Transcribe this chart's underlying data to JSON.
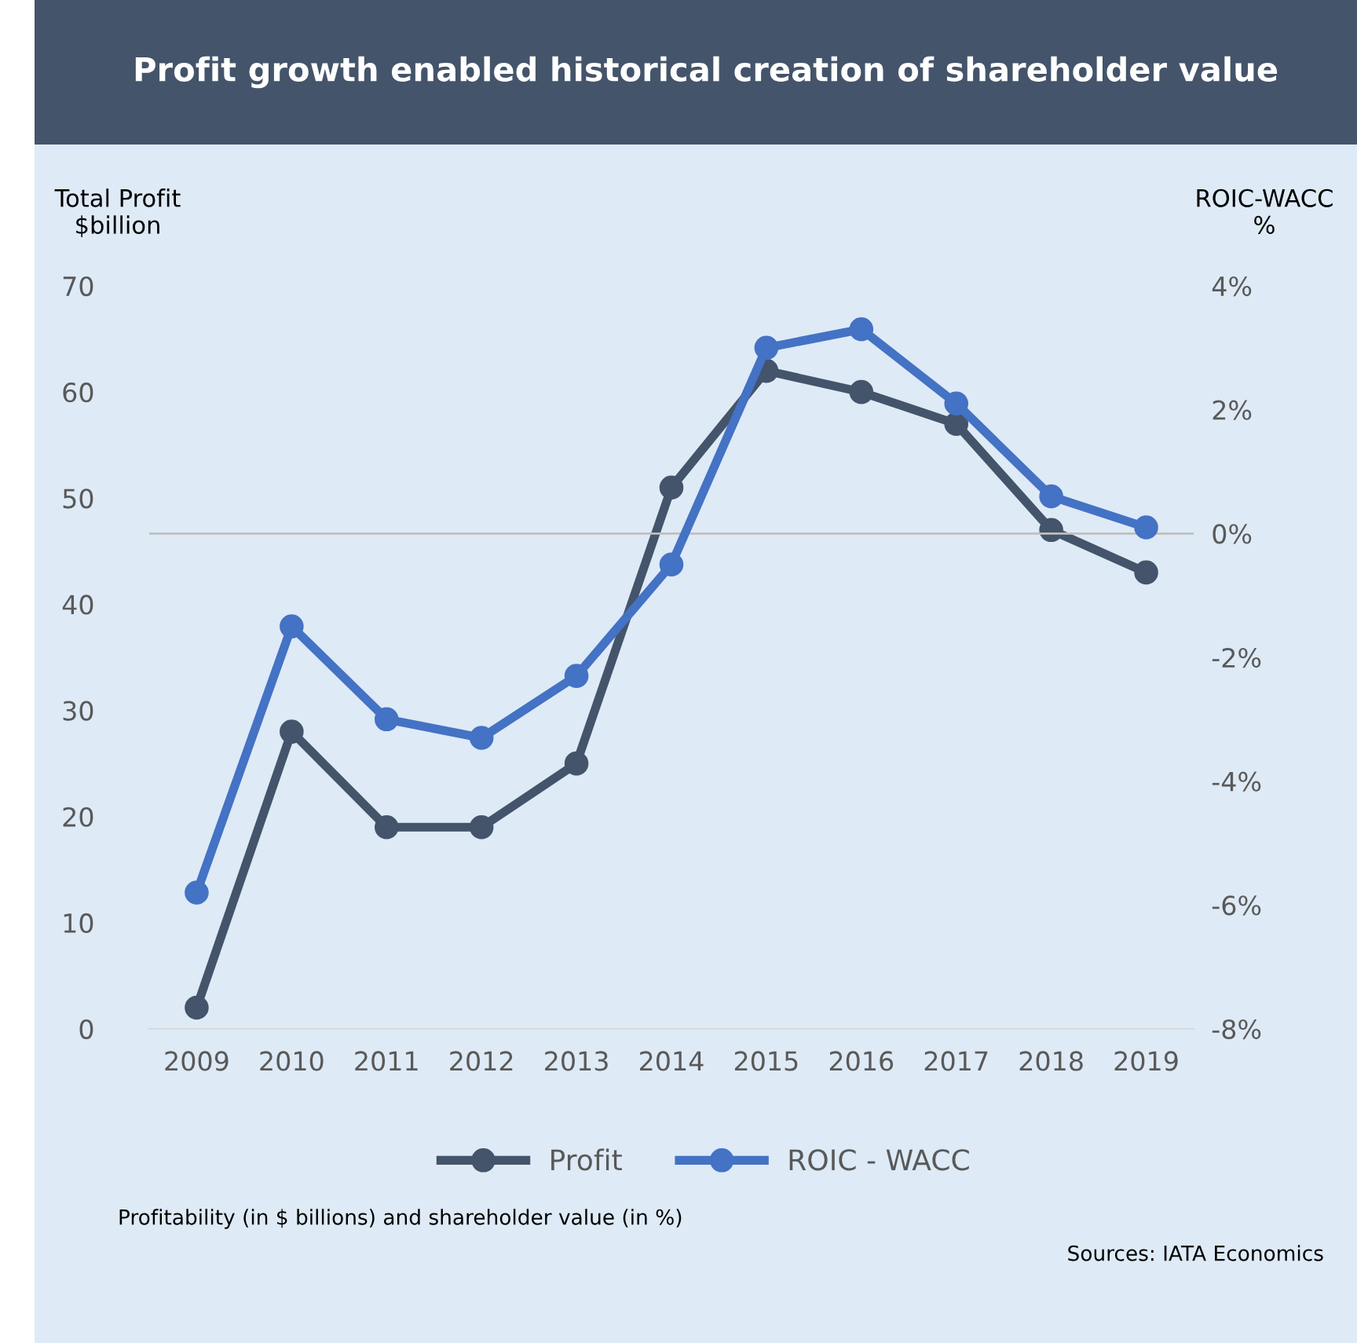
{
  "chart_data": {
    "type": "line",
    "title": "Profit growth enabled historical creation of shareholder value",
    "ylabel": "Total Profit\n$billion",
    "y2label": "ROIC-WACC\n%",
    "categories": [
      "2009",
      "2010",
      "2011",
      "2012",
      "2013",
      "2014",
      "2015",
      "2016",
      "2017",
      "2018",
      "2019"
    ],
    "series": [
      {
        "name": "Profit",
        "color": "#44546a",
        "values": [
          2,
          28,
          19,
          19,
          25,
          51,
          62,
          60,
          57,
          47,
          43
        ]
      },
      {
        "name": "ROIC - WACC",
        "color": "#4472c4",
        "axis": "y2",
        "values": [
          -5.8,
          -1.5,
          -3.0,
          -3.3,
          -2.3,
          -0.5,
          3.0,
          3.3,
          2.1,
          0.6,
          0.1
        ]
      }
    ],
    "ylim": [
      0,
      70
    ],
    "yticks": [
      0,
      10,
      20,
      30,
      40,
      50,
      60,
      70
    ],
    "y2lim": [
      -8,
      4
    ],
    "y2ticks": [
      {
        "value": -8,
        "label": "-8%"
      },
      {
        "value": -6,
        "label": "-6%"
      },
      {
        "value": -4,
        "label": "-4%"
      },
      {
        "value": -2,
        "label": "-2%"
      },
      {
        "value": 0,
        "label": "0%"
      },
      {
        "value": 2,
        "label": "2%"
      },
      {
        "value": 4,
        "label": "4%"
      }
    ],
    "ref_lines": [
      {
        "axis": "y2",
        "value": 0,
        "color": "#bfbfbf"
      }
    ],
    "marker": "circle",
    "line_style": "solid",
    "grid": false,
    "legend": "bottom",
    "annotations": [
      "Profitability (in $ billions) and shareholder value (in %)",
      "Sources: IATA Economics"
    ]
  }
}
